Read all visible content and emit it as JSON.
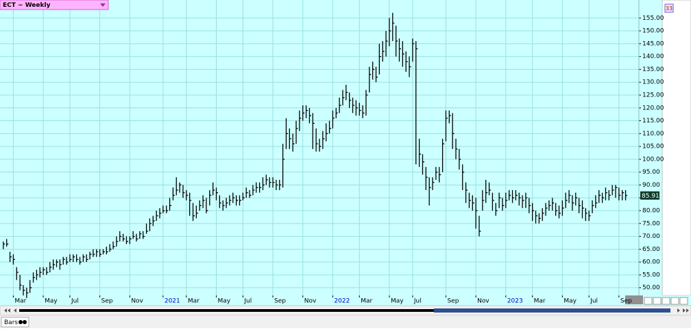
{
  "ui": {
    "symbol_label": "ECT ~ Weekly",
    "badge": "33",
    "status_label": "Bars"
  },
  "chart_data": {
    "type": "ohlc",
    "color": "#000000",
    "grid": true,
    "xlim": [
      -1,
      191
    ],
    "xticks": [
      {
        "value": 3,
        "label": "Mar"
      },
      {
        "value": 12,
        "label": "May"
      },
      {
        "value": 20,
        "label": "Jul"
      },
      {
        "value": 29,
        "label": "Sep"
      },
      {
        "value": 38,
        "label": "Nov"
      },
      {
        "value": 48,
        "label": "2021"
      },
      {
        "value": 55,
        "label": "Mar"
      },
      {
        "value": 64,
        "label": "May"
      },
      {
        "value": 72,
        "label": "Jul"
      },
      {
        "value": 81,
        "label": "Sep"
      },
      {
        "value": 90,
        "label": "Nov"
      },
      {
        "value": 99,
        "label": "2022"
      },
      {
        "value": 107,
        "label": "Mar"
      },
      {
        "value": 116,
        "label": "May"
      },
      {
        "value": 123,
        "label": "Jul"
      },
      {
        "value": 133,
        "label": "Sep"
      },
      {
        "value": 142,
        "label": "Nov"
      },
      {
        "value": 151,
        "label": "2023"
      },
      {
        "value": 159,
        "label": "Mar"
      },
      {
        "value": 168,
        "label": "May"
      },
      {
        "value": 176,
        "label": "Jul"
      },
      {
        "value": 185,
        "label": "Sep"
      }
    ],
    "ylim": [
      47,
      162
    ],
    "yticks": [
      {
        "value": 50,
        "label": "50.00"
      },
      {
        "value": 55,
        "label": "55.00"
      },
      {
        "value": 60,
        "label": "60.00"
      },
      {
        "value": 65,
        "label": "65.00"
      },
      {
        "value": 70,
        "label": "70.00"
      },
      {
        "value": 75,
        "label": "75.00"
      },
      {
        "value": 80,
        "label": "80.00"
      },
      {
        "value": 85,
        "label": "85.00"
      },
      {
        "value": 90,
        "label": "90.00"
      },
      {
        "value": 95,
        "label": "95.00"
      },
      {
        "value": 100,
        "label": "100.00"
      },
      {
        "value": 105,
        "label": "105.00"
      },
      {
        "value": 110,
        "label": "110.00"
      },
      {
        "value": 115,
        "label": "115.00"
      },
      {
        "value": 120,
        "label": "120.00"
      },
      {
        "value": 125,
        "label": "125.00"
      },
      {
        "value": 130,
        "label": "130.00"
      },
      {
        "value": 135,
        "label": "135.00"
      },
      {
        "value": 140,
        "label": "140.00"
      },
      {
        "value": 145,
        "label": "145.00"
      },
      {
        "value": 150,
        "label": "150.00"
      },
      {
        "value": 155,
        "label": "155.00"
      }
    ],
    "high": [
      68,
      69,
      64,
      63,
      58,
      55,
      51,
      50,
      53,
      56,
      57,
      58,
      58,
      58,
      60,
      61,
      61,
      61,
      62,
      62,
      63,
      63,
      63,
      62,
      63,
      63,
      64,
      65,
      65,
      65,
      65,
      66,
      67,
      68,
      70,
      72,
      71,
      70,
      70,
      72,
      71,
      72,
      72,
      75,
      77,
      78,
      80,
      81,
      82,
      82,
      85,
      89,
      93,
      91,
      90,
      88,
      87,
      83,
      82,
      84,
      86,
      85,
      88,
      91,
      89,
      86,
      84,
      85,
      86,
      87,
      86,
      86,
      87,
      89,
      88,
      90,
      91,
      91,
      93,
      94,
      93,
      93,
      92,
      92,
      106,
      116,
      112,
      110,
      115,
      119,
      121,
      121,
      120,
      118,
      112,
      108,
      111,
      114,
      115,
      119,
      120,
      124,
      127,
      129,
      126,
      124,
      123,
      122,
      121,
      127,
      136,
      138,
      136,
      145,
      146,
      150,
      155,
      157,
      152,
      147,
      146,
      142,
      140,
      147,
      146,
      108,
      102,
      97,
      93,
      93,
      97,
      97,
      108,
      119,
      119,
      118,
      108,
      104,
      98,
      91,
      87,
      86,
      85,
      78,
      88,
      92,
      91,
      87,
      83,
      87,
      85,
      87,
      88,
      88,
      88,
      87,
      86,
      87,
      85,
      83,
      80,
      79,
      81,
      83,
      84,
      85,
      83,
      82,
      84,
      87,
      88,
      86,
      87,
      85,
      84,
      81,
      80,
      84,
      86,
      88,
      87,
      89,
      88,
      90,
      90,
      89,
      88,
      88
    ],
    "low": [
      65,
      66,
      60,
      59,
      53,
      49,
      47,
      46,
      48,
      52,
      53,
      54,
      55,
      55,
      56,
      57,
      58,
      57,
      59,
      59,
      60,
      60,
      60,
      59,
      60,
      60,
      61,
      62,
      62,
      62,
      63,
      63,
      64,
      65,
      66,
      68,
      68,
      67,
      67,
      69,
      68,
      69,
      69,
      71,
      72,
      74,
      76,
      77,
      79,
      79,
      80,
      84,
      86,
      87,
      85,
      84,
      78,
      76,
      77,
      80,
      81,
      79,
      82,
      86,
      84,
      81,
      80,
      81,
      82,
      83,
      82,
      82,
      84,
      85,
      85,
      86,
      87,
      87,
      88,
      90,
      89,
      89,
      88,
      88,
      89,
      104,
      104,
      103,
      106,
      111,
      115,
      116,
      114,
      104,
      103,
      103,
      104,
      107,
      110,
      112,
      116,
      118,
      121,
      123,
      120,
      118,
      117,
      117,
      116,
      117,
      126,
      131,
      130,
      133,
      138,
      140,
      144,
      146,
      140,
      138,
      136,
      134,
      132,
      138,
      98,
      97,
      94,
      88,
      82,
      88,
      92,
      91,
      95,
      107,
      114,
      104,
      100,
      96,
      88,
      83,
      81,
      80,
      73,
      70,
      80,
      83,
      86,
      80,
      78,
      81,
      80,
      81,
      84,
      83,
      84,
      82,
      81,
      81,
      79,
      76,
      75,
      75,
      76,
      78,
      80,
      80,
      78,
      77,
      78,
      81,
      83,
      80,
      82,
      79,
      77,
      76,
      76,
      79,
      81,
      83,
      83,
      84,
      84,
      86,
      85,
      84,
      84,
      84
    ],
    "close": [
      67,
      67,
      62,
      61,
      56,
      51,
      49,
      48,
      50,
      54,
      55,
      56,
      57,
      56,
      58,
      59,
      60,
      59,
      61,
      60,
      61,
      62,
      61,
      60,
      62,
      61,
      63,
      63,
      64,
      63,
      64,
      64,
      65,
      66,
      68,
      70,
      69,
      68,
      69,
      70,
      69,
      71,
      70,
      72,
      75,
      76,
      78,
      79,
      80,
      80,
      82,
      86,
      88,
      90,
      87,
      86,
      84,
      78,
      79,
      82,
      84,
      80,
      86,
      88,
      87,
      83,
      82,
      83,
      84,
      85,
      84,
      84,
      85,
      87,
      86,
      88,
      89,
      89,
      90,
      92,
      91,
      91,
      90,
      90,
      100,
      110,
      108,
      106,
      112,
      116,
      118,
      119,
      117,
      114,
      106,
      105,
      108,
      110,
      112,
      116,
      118,
      121,
      124,
      126,
      123,
      121,
      120,
      119,
      118,
      125,
      133,
      135,
      132,
      140,
      142,
      146,
      150,
      153,
      146,
      143,
      141,
      138,
      136,
      145,
      143,
      102,
      99,
      93,
      89,
      91,
      95,
      94,
      106,
      116,
      117,
      110,
      104,
      100,
      95,
      88,
      84,
      83,
      80,
      72,
      84,
      87,
      88,
      84,
      80,
      85,
      82,
      84,
      86,
      85,
      86,
      85,
      84,
      85,
      82,
      80,
      78,
      77,
      79,
      81,
      82,
      83,
      80,
      79,
      81,
      84,
      86,
      83,
      85,
      82,
      81,
      79,
      78,
      82,
      83,
      86,
      85,
      87,
      86,
      88,
      89,
      86,
      87,
      85.91
    ]
  }
}
